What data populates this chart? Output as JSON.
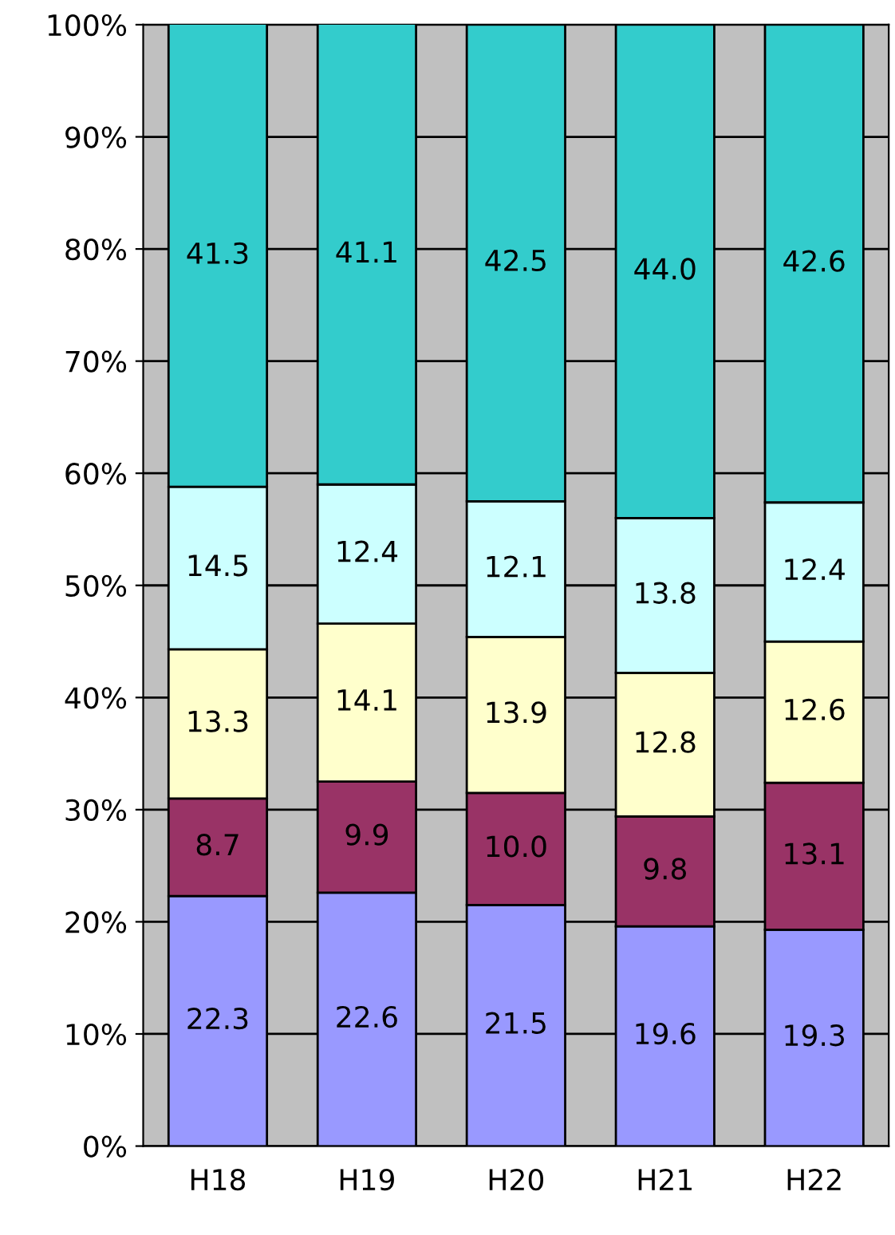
{
  "chart_data": {
    "type": "bar",
    "stacked": true,
    "categories": [
      "H18",
      "H19",
      "H20",
      "H21",
      "H22"
    ],
    "series": [
      {
        "color": "#9999ff",
        "values": [
          22.3,
          22.6,
          21.5,
          19.6,
          19.3
        ],
        "value_labels": [
          "22.3",
          "22.6",
          "21.5",
          "19.6",
          "19.3"
        ]
      },
      {
        "color": "#993366",
        "values": [
          8.7,
          9.9,
          10.0,
          9.8,
          13.1
        ],
        "value_labels": [
          "8.7",
          "9.9",
          "10.0",
          "9.8",
          "13.1"
        ]
      },
      {
        "color": "#ffffcc",
        "values": [
          13.3,
          14.1,
          13.9,
          12.8,
          12.6
        ],
        "value_labels": [
          "13.3",
          "14.1",
          "13.9",
          "12.8",
          "12.6"
        ]
      },
      {
        "color": "#ccffff",
        "values": [
          14.5,
          12.4,
          12.1,
          13.8,
          12.4
        ],
        "value_labels": [
          "14.5",
          "12.4",
          "12.1",
          "13.8",
          "12.4"
        ]
      },
      {
        "color": "#33cccc",
        "values": [
          41.3,
          41.1,
          42.5,
          44.0,
          42.6
        ],
        "value_labels": [
          "41.3",
          "41.1",
          "42.5",
          "44.0",
          "42.6"
        ]
      }
    ],
    "ylim": [
      0,
      100
    ],
    "yticks": [
      {
        "value": 0,
        "label": "0%"
      },
      {
        "value": 10,
        "label": "10%"
      },
      {
        "value": 20,
        "label": "20%"
      },
      {
        "value": 30,
        "label": "30%"
      },
      {
        "value": 40,
        "label": "40%"
      },
      {
        "value": 50,
        "label": "50%"
      },
      {
        "value": 60,
        "label": "60%"
      },
      {
        "value": 70,
        "label": "70%"
      },
      {
        "value": 80,
        "label": "80%"
      },
      {
        "value": 90,
        "label": "90%"
      },
      {
        "value": 100,
        "label": "100%"
      }
    ],
    "grid": "y",
    "legend": false
  }
}
